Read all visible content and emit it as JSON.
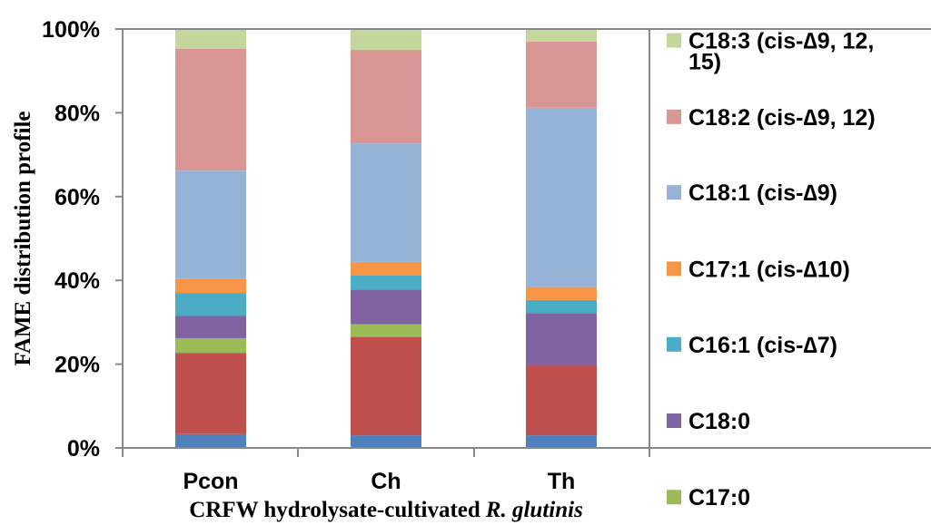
{
  "chart_data": {
    "type": "bar",
    "stacked": true,
    "normalized_percent": true,
    "categories": [
      "Pcon",
      "Ch",
      "Th"
    ],
    "xlabel": "CRFW hydrolysate-cultivated",
    "xlabel_italic": "R. glutinis",
    "ylabel": "FAME distribution profile",
    "ylim": [
      0,
      100
    ],
    "yticks": [
      "0%",
      "20%",
      "40%",
      "60%",
      "80%",
      "100%"
    ],
    "grid": false,
    "legend_position": "right",
    "series": [
      {
        "name": "",
        "color": "#4f81bd",
        "values": [
          3.3,
          3.0,
          3.0
        ]
      },
      {
        "name": "",
        "color": "#c0504d",
        "values": [
          19.4,
          23.5,
          16.8
        ]
      },
      {
        "name": "C17:0",
        "color": "#9bbb59",
        "values": [
          3.5,
          3.0,
          0.0
        ]
      },
      {
        "name": "C18:0",
        "color": "#8064a2",
        "values": [
          5.3,
          8.3,
          12.4
        ]
      },
      {
        "name": "C16:1 (cis-∆7)",
        "color": "#4bacc6",
        "values": [
          5.5,
          3.4,
          3.1
        ]
      },
      {
        "name": "C17:1 (cis-∆10)",
        "color": "#f79646",
        "values": [
          3.4,
          3.2,
          3.1
        ]
      },
      {
        "name": "C18:1 (cis-∆9)",
        "color": "#95b3d7",
        "values": [
          25.8,
          28.3,
          42.8
        ]
      },
      {
        "name": "C18:2 (cis-∆9, 12)",
        "color": "#d99694",
        "values": [
          29.1,
          22.3,
          15.8
        ]
      },
      {
        "name": "C18:3 (cis-∆9, 12, 15)",
        "color": "#c3d69b",
        "values": [
          4.7,
          5.0,
          3.0
        ]
      }
    ],
    "legend_entries": [
      {
        "label_line1": "C18:3 (cis-∆9, 12,",
        "label_line2": "15)",
        "color": "#c3d69b"
      },
      {
        "label_line1": "C18:2 (cis-∆9, 12)",
        "label_line2": "",
        "color": "#d99694"
      },
      {
        "label_line1": "C18:1 (cis-∆9)",
        "label_line2": "",
        "color": "#95b3d7"
      },
      {
        "label_line1": "C17:1 (cis-∆10)",
        "label_line2": "",
        "color": "#f79646"
      },
      {
        "label_line1": "C16:1 (cis-∆7)",
        "label_line2": "",
        "color": "#4bacc6"
      },
      {
        "label_line1": "C18:0",
        "label_line2": "",
        "color": "#8064a2"
      },
      {
        "label_line1": "C17:0",
        "label_line2": "",
        "color": "#9bbb59"
      }
    ]
  }
}
